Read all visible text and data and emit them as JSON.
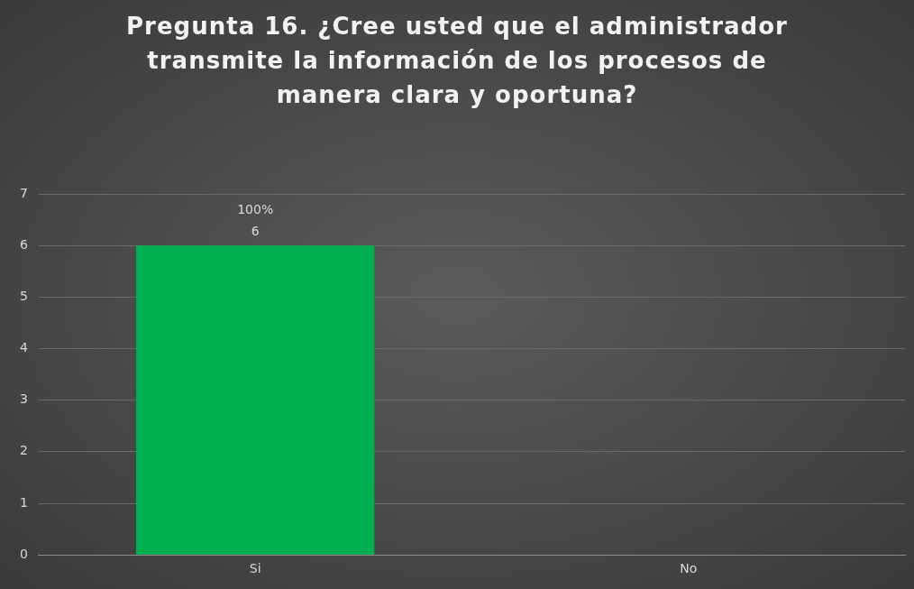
{
  "chart_data": {
    "type": "bar",
    "title": "Pregunta 16. ¿Cree usted que el administrador transmite la información de los procesos de manera clara y oportuna?",
    "categories": [
      "Si",
      "No"
    ],
    "values": [
      6,
      0
    ],
    "value_labels": [
      "6",
      null
    ],
    "annotations": [
      {
        "text": "100%",
        "x": "Si",
        "y": 6
      }
    ],
    "color": "#00b050",
    "ylim": [
      0,
      7
    ],
    "yticks": [
      0,
      1,
      2,
      3,
      4,
      5,
      6,
      7
    ],
    "grid": "y",
    "legend": false
  }
}
